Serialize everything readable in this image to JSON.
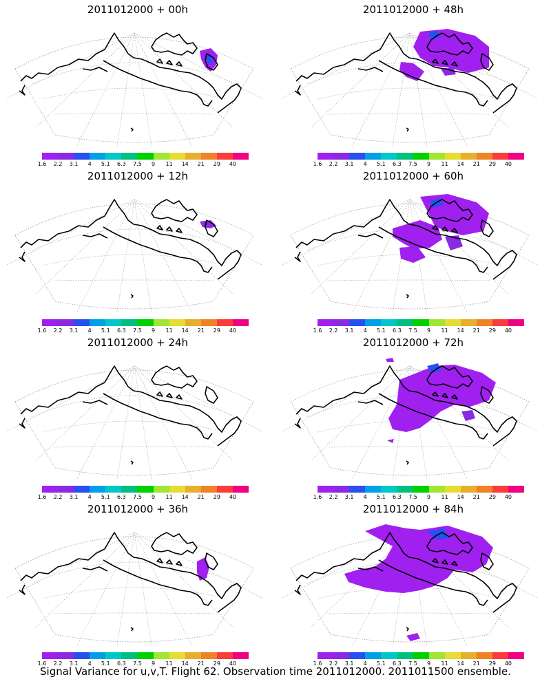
{
  "panels": [
    {
      "title": "2011012000 + 00h",
      "hour": 0
    },
    {
      "title": "2011012000 + 48h",
      "hour": 48
    },
    {
      "title": "2011012000 + 12h",
      "hour": 12
    },
    {
      "title": "2011012000 + 60h",
      "hour": 60
    },
    {
      "title": "2011012000 + 24h",
      "hour": 24
    },
    {
      "title": "2011012000 + 72h",
      "hour": 72
    },
    {
      "title": "2011012000 + 36h",
      "hour": 36
    },
    {
      "title": "2011012000 + 84h",
      "hour": 84
    }
  ],
  "colorbar": {
    "colors": [
      "#a020f0",
      "#8a2be2",
      "#2850f0",
      "#00a0e6",
      "#00c8c8",
      "#00c080",
      "#00d000",
      "#a0e632",
      "#e6dc32",
      "#e6af2d",
      "#f08228",
      "#fa3c3c",
      "#f00082"
    ],
    "labels": [
      "1.6",
      "2.2",
      "3.1",
      "4",
      "5.1",
      "6.3",
      "7.5",
      "9",
      "11",
      "14",
      "21",
      "29",
      "40"
    ]
  },
  "footer": "Signal Variance for u,v,T. Flight 62. Observation time 2011012000. 2011011500 ensemble."
}
